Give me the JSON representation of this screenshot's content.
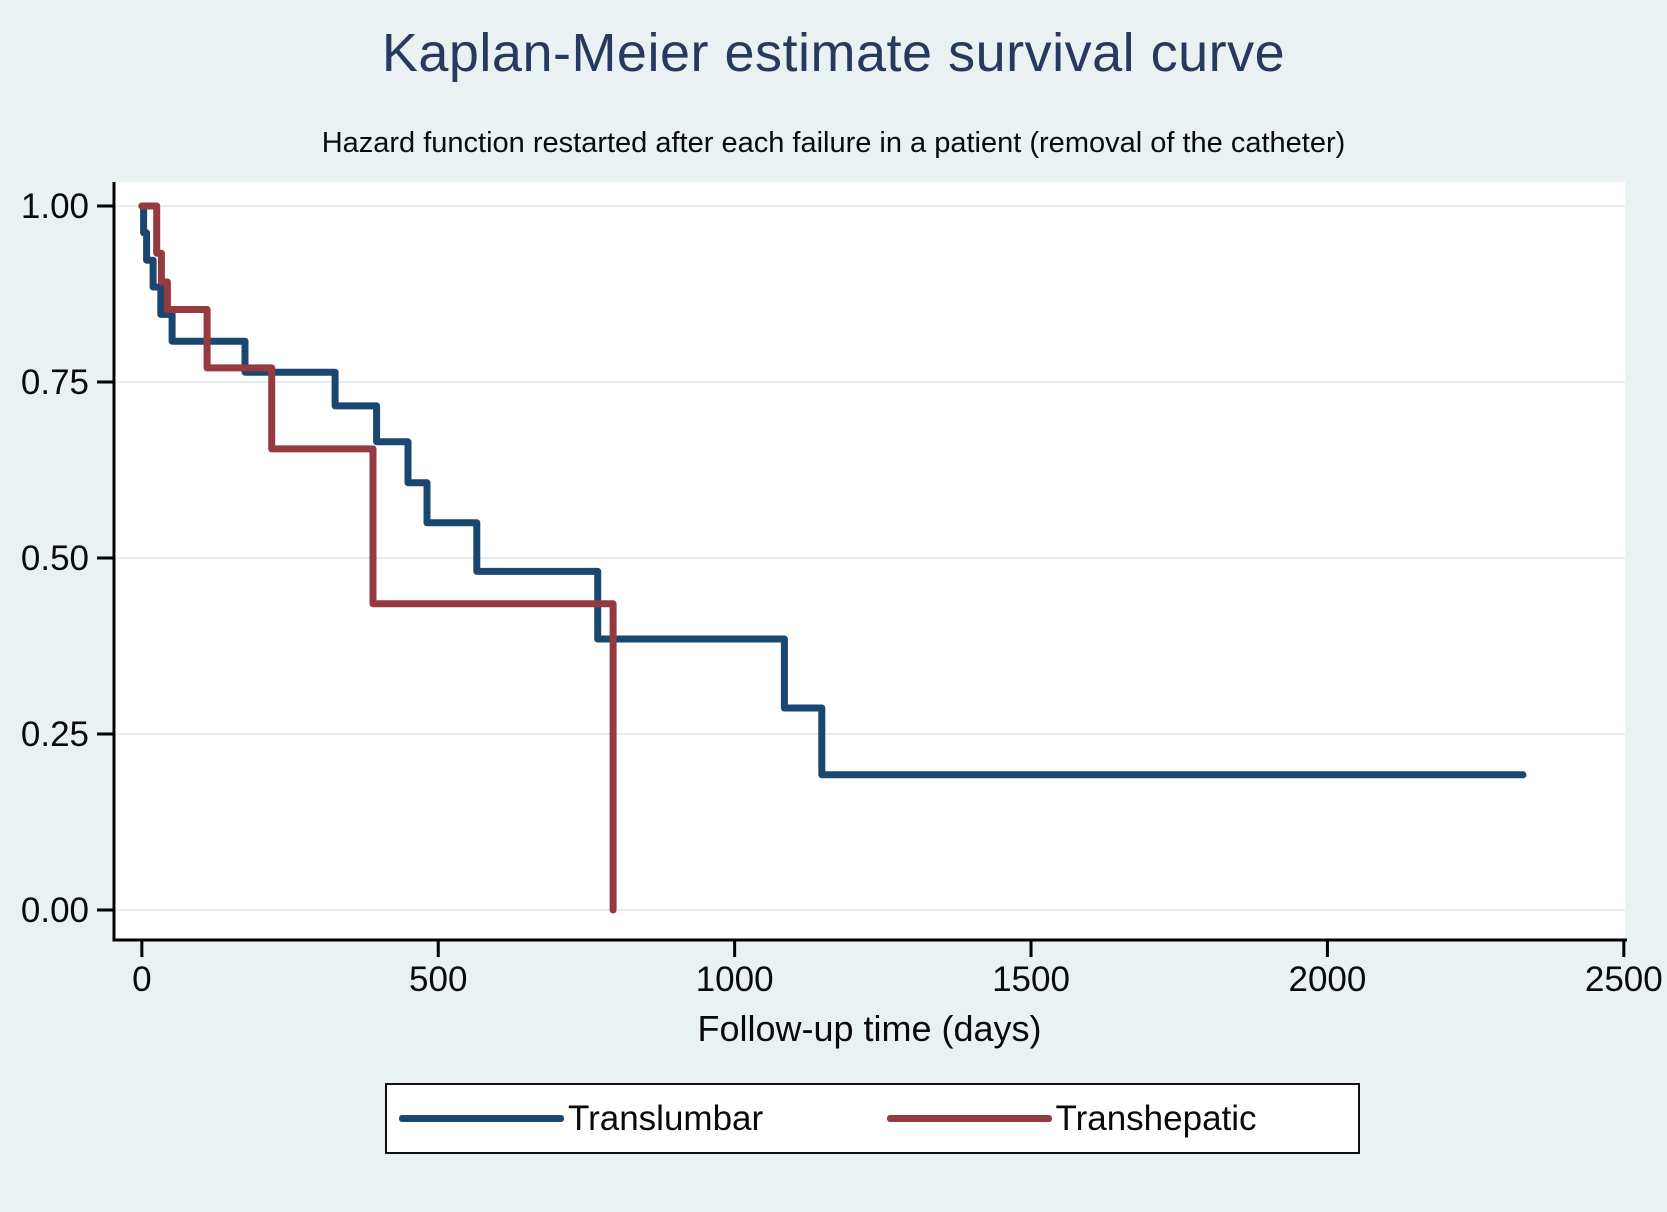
{
  "chart_data": {
    "type": "line",
    "subtype": "kaplan-meier-step",
    "title": "Kaplan-Meier estimate survival curve",
    "subtitle": "Hazard function restarted after each failure in a patient (removal of the catheter)",
    "xlabel": "Follow-up time (days)",
    "ylabel": "",
    "x_tick_labels": [
      "0",
      "500",
      "1000",
      "1500",
      "2000",
      "2500"
    ],
    "y_tick_labels": [
      "0.00",
      "0.25",
      "0.50",
      "0.75",
      "1.00"
    ],
    "xlim": [
      -47,
      2502
    ],
    "ylim": [
      -0.0426,
      1.0341
    ],
    "grid": "horizontal-only",
    "legend_position": "bottom-center",
    "series": [
      {
        "name": "Translumbar",
        "color": "#1a476f",
        "points": [
          [
            0,
            1.0
          ],
          [
            3,
            0.962
          ],
          [
            8,
            0.923
          ],
          [
            19,
            0.885
          ],
          [
            32,
            0.846
          ],
          [
            51,
            0.808
          ],
          [
            174,
            0.764
          ],
          [
            326,
            0.716
          ],
          [
            396,
            0.665
          ],
          [
            449,
            0.607
          ],
          [
            481,
            0.55
          ],
          [
            565,
            0.481
          ],
          [
            769,
            0.385
          ],
          [
            1084,
            0.287
          ],
          [
            1147,
            0.192
          ],
          [
            2330,
            0.192
          ]
        ]
      },
      {
        "name": "Transhepatic",
        "color": "#943a40",
        "points": [
          [
            0,
            1.0
          ],
          [
            25,
            0.933
          ],
          [
            33,
            0.892
          ],
          [
            43,
            0.853
          ],
          [
            110,
            0.77
          ],
          [
            219,
            0.655
          ],
          [
            390,
            0.435
          ],
          [
            795,
            0.0
          ]
        ]
      }
    ]
  },
  "colors": {
    "page_background": "#eaf1f3",
    "plot_background": "#ffffff",
    "grid": "#e2edf0",
    "axis": "#000000",
    "title_text": "#253a5e"
  }
}
